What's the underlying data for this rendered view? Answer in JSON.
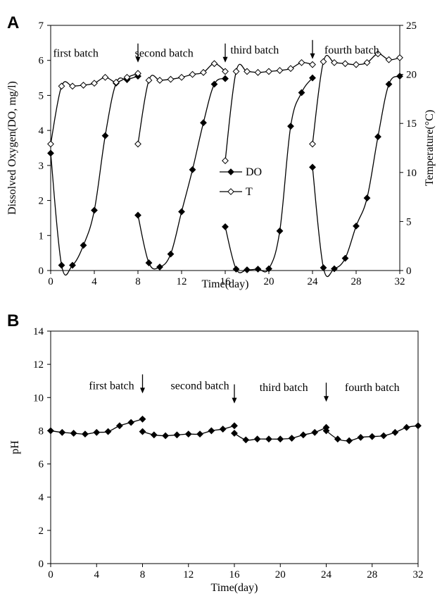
{
  "chart_data": [
    {
      "panel_label": "A",
      "type": "line",
      "xlabel": "Time(day)",
      "ylabel": "Dissolved Oxygen(DO, mg/l)",
      "y2label": "Temperature(°C)",
      "xlim": [
        0,
        32
      ],
      "ylim": [
        0,
        7
      ],
      "y2lim": [
        0,
        25
      ],
      "xticks": [
        "0",
        "4",
        "8",
        "12",
        "16",
        "20",
        "24",
        "28",
        "32"
      ],
      "yticks": [
        "0",
        "1",
        "2",
        "3",
        "4",
        "5",
        "6",
        "7"
      ],
      "y2ticks": [
        "0",
        "5",
        "10",
        "15",
        "20",
        "25"
      ],
      "grid": false,
      "legend_position": "center",
      "series": [
        {
          "name": "DO",
          "marker": "filled-diamond",
          "axis": "left",
          "segments": [
            [
              [
                0,
                3.35
              ],
              [
                1,
                0.15
              ],
              [
                2,
                0.15
              ],
              [
                3,
                0.72
              ],
              [
                4,
                1.72
              ],
              [
                5,
                3.85
              ],
              [
                6,
                5.35
              ],
              [
                7,
                5.45
              ],
              [
                8,
                5.55
              ]
            ],
            [
              [
                8,
                1.58
              ],
              [
                9,
                0.22
              ],
              [
                10,
                0.1
              ],
              [
                11,
                0.47
              ],
              [
                12,
                1.68
              ],
              [
                13,
                2.88
              ],
              [
                14,
                4.22
              ],
              [
                15,
                5.32
              ],
              [
                16,
                5.48
              ]
            ],
            [
              [
                16,
                1.25
              ],
              [
                17,
                0.04
              ],
              [
                18,
                0.02
              ],
              [
                19,
                0.04
              ],
              [
                20,
                0.05
              ],
              [
                21,
                1.13
              ],
              [
                22,
                4.12
              ],
              [
                23,
                5.08
              ],
              [
                24,
                5.5
              ]
            ],
            [
              [
                24,
                2.95
              ],
              [
                25,
                0.08
              ],
              [
                26,
                0.05
              ],
              [
                27,
                0.35
              ],
              [
                28,
                1.27
              ],
              [
                29,
                2.07
              ],
              [
                30,
                3.82
              ],
              [
                31,
                5.32
              ],
              [
                32,
                5.55
              ]
            ]
          ]
        },
        {
          "name": "T",
          "marker": "open-diamond",
          "axis": "right",
          "segments": [
            [
              [
                0,
                12.9
              ],
              [
                1,
                18.8
              ],
              [
                2,
                18.8
              ],
              [
                3,
                18.9
              ],
              [
                4,
                19.1
              ],
              [
                5,
                19.7
              ],
              [
                6,
                19.2
              ],
              [
                7,
                19.7
              ],
              [
                8,
                20.1
              ]
            ],
            [
              [
                8,
                12.9
              ],
              [
                9,
                19.4
              ],
              [
                10,
                19.4
              ],
              [
                11,
                19.5
              ],
              [
                12,
                19.7
              ],
              [
                13,
                20.0
              ],
              [
                14,
                20.2
              ],
              [
                15,
                21.1
              ],
              [
                16,
                20.3
              ]
            ],
            [
              [
                16,
                11.2
              ],
              [
                17,
                20.3
              ],
              [
                18,
                20.3
              ],
              [
                19,
                20.2
              ],
              [
                20,
                20.3
              ],
              [
                21,
                20.4
              ],
              [
                22,
                20.6
              ],
              [
                23,
                21.2
              ],
              [
                24,
                21.0
              ]
            ],
            [
              [
                24,
                12.9
              ],
              [
                25,
                21.3
              ],
              [
                26,
                21.2
              ],
              [
                27,
                21.1
              ],
              [
                28,
                21.0
              ],
              [
                29,
                21.2
              ],
              [
                30,
                22.1
              ],
              [
                31,
                21.5
              ],
              [
                32,
                21.7
              ]
            ]
          ]
        }
      ],
      "annotations": [
        {
          "text": "first batch",
          "x": 2.3,
          "y": 6.1,
          "arrow": false
        },
        {
          "text": "second batch",
          "x": 10.4,
          "y": 6.1,
          "arrow": false
        },
        {
          "text": "third batch",
          "x": 18.7,
          "y": 6.2,
          "arrow": false
        },
        {
          "text": "fourth batch",
          "x": 27.6,
          "y": 6.2,
          "arrow": false
        },
        {
          "text": "",
          "x": 8,
          "y": 6.2,
          "arrow": true
        },
        {
          "text": "",
          "x": 16,
          "y": 6.2,
          "arrow": true
        },
        {
          "text": "",
          "x": 24,
          "y": 6.3,
          "arrow": true
        }
      ]
    },
    {
      "panel_label": "B",
      "type": "line",
      "xlabel": "Time(day)",
      "ylabel": "pH",
      "xlim": [
        0,
        32
      ],
      "ylim": [
        0,
        14
      ],
      "xticks": [
        "0",
        "4",
        "8",
        "12",
        "16",
        "20",
        "24",
        "28",
        "32"
      ],
      "yticks": [
        "0",
        "2",
        "4",
        "6",
        "8",
        "10",
        "12",
        "14"
      ],
      "grid": false,
      "series": [
        {
          "name": "",
          "marker": "filled-diamond",
          "axis": "left",
          "segments": [
            [
              [
                0,
                8.0
              ],
              [
                1,
                7.9
              ],
              [
                2,
                7.85
              ],
              [
                3,
                7.8
              ],
              [
                4,
                7.9
              ],
              [
                5,
                7.95
              ],
              [
                6,
                8.3
              ],
              [
                7,
                8.5
              ],
              [
                8,
                8.7
              ]
            ],
            [
              [
                8,
                7.95
              ],
              [
                9,
                7.75
              ],
              [
                10,
                7.7
              ],
              [
                11,
                7.75
              ],
              [
                12,
                7.8
              ],
              [
                13,
                7.8
              ],
              [
                14,
                8.0
              ],
              [
                15,
                8.1
              ],
              [
                16,
                8.3
              ]
            ],
            [
              [
                16,
                7.85
              ],
              [
                17,
                7.45
              ],
              [
                18,
                7.5
              ],
              [
                19,
                7.5
              ],
              [
                20,
                7.5
              ],
              [
                21,
                7.55
              ],
              [
                22,
                7.75
              ],
              [
                23,
                7.9
              ],
              [
                24,
                8.2
              ]
            ],
            [
              [
                24,
                8.0
              ],
              [
                25,
                7.5
              ],
              [
                26,
                7.4
              ],
              [
                27,
                7.6
              ],
              [
                28,
                7.65
              ],
              [
                29,
                7.7
              ],
              [
                30,
                7.9
              ],
              [
                31,
                8.2
              ],
              [
                32,
                8.3
              ]
            ]
          ]
        }
      ],
      "annotations": [
        {
          "text": "first batch",
          "x": 5.3,
          "y": 10.5,
          "arrow": false
        },
        {
          "text": "second batch",
          "x": 13.0,
          "y": 10.5,
          "arrow": false
        },
        {
          "text": "third batch",
          "x": 20.3,
          "y": 10.4,
          "arrow": false
        },
        {
          "text": "fourth batch",
          "x": 28.0,
          "y": 10.4,
          "arrow": false
        },
        {
          "text": "",
          "x": 8,
          "y": 10.8,
          "arrow": true
        },
        {
          "text": "",
          "x": 16,
          "y": 10.2,
          "arrow": true
        },
        {
          "text": "",
          "x": 24,
          "y": 10.3,
          "arrow": true
        }
      ]
    }
  ]
}
